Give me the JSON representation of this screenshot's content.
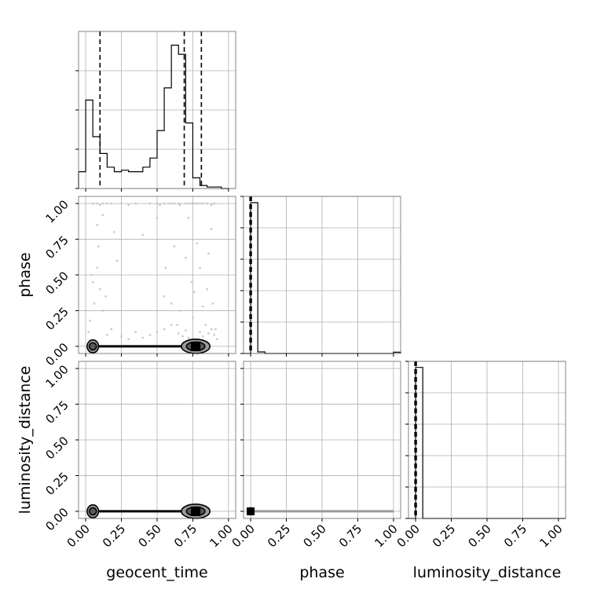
{
  "chart_data": {
    "type": "corner",
    "parameters": [
      "geocent_time",
      "phase",
      "luminosity_distance"
    ],
    "tick_labels": [
      "0.00",
      "0.25",
      "0.50",
      "0.75",
      "1.00"
    ],
    "ticks": [
      0,
      0.25,
      0.5,
      0.75,
      1.0
    ],
    "axis_range": [
      -0.05,
      1.05
    ],
    "grid": true,
    "histograms": [
      {
        "parameter": "geocent_time",
        "bin_edges": [
          -0.05,
          0.0,
          0.05,
          0.1,
          0.15,
          0.2,
          0.25,
          0.3,
          0.35,
          0.4,
          0.45,
          0.5,
          0.55,
          0.6,
          0.65,
          0.7,
          0.75,
          0.8,
          0.85,
          0.9,
          0.95,
          1.0
        ],
        "counts": [
          0.11,
          0.58,
          0.34,
          0.23,
          0.14,
          0.11,
          0.12,
          0.11,
          0.11,
          0.14,
          0.2,
          0.38,
          0.66,
          0.94,
          0.88,
          0.43,
          0.07,
          0.02,
          0.01,
          0.01,
          0.0
        ],
        "ymax": 1.03,
        "quantiles": [
          0.1,
          0.69,
          0.81
        ]
      },
      {
        "parameter": "phase",
        "bin_edges": [
          -0.05,
          0.0,
          0.05,
          0.1,
          0.15,
          0.2,
          0.25,
          0.3,
          0.35,
          0.4,
          0.45,
          0.5,
          0.55,
          0.6,
          0.65,
          0.7,
          0.75,
          0.8,
          0.85,
          0.9,
          0.95,
          1.0,
          1.05
        ],
        "counts": [
          0,
          0.96,
          0.01,
          0,
          0,
          0,
          0,
          0,
          0,
          0,
          0,
          0,
          0,
          0,
          0,
          0,
          0,
          0,
          0,
          0,
          0,
          0.008
        ],
        "ymax": 1.0,
        "quantiles": [
          -0.005,
          0.0,
          0.005
        ]
      },
      {
        "parameter": "luminosity_distance",
        "bin_edges": [
          -0.05,
          0.0,
          0.05,
          0.1,
          0.15,
          0.2,
          0.25,
          0.3,
          0.35,
          0.4,
          0.45,
          0.5,
          0.55,
          0.6,
          0.65,
          0.7,
          0.75,
          0.8,
          0.85,
          0.9,
          0.95,
          1.0,
          1.05
        ],
        "counts": [
          0,
          1.0,
          0,
          0,
          0,
          0,
          0,
          0,
          0,
          0,
          0,
          0,
          0,
          0,
          0,
          0,
          0,
          0,
          0,
          0,
          0,
          0
        ],
        "ymax": 1.04,
        "quantiles": [
          -0.005,
          0.0,
          0.005
        ]
      }
    ],
    "pair_panels": [
      {
        "x": "geocent_time",
        "y": "phase",
        "scatter_points": [
          [
            0.05,
            1.0
          ],
          [
            0.08,
            1.0
          ],
          [
            0.1,
            0.99
          ],
          [
            0.12,
            1.0
          ],
          [
            0.15,
            1.0
          ],
          [
            0.18,
            1.0
          ],
          [
            0.25,
            1.0
          ],
          [
            0.3,
            0.99
          ],
          [
            0.35,
            1.0
          ],
          [
            0.45,
            1.0
          ],
          [
            0.5,
            1.0
          ],
          [
            0.52,
            0.99
          ],
          [
            0.55,
            1.0
          ],
          [
            0.58,
            1.0
          ],
          [
            0.6,
            1.0
          ],
          [
            0.62,
            1.0
          ],
          [
            0.65,
            1.0
          ],
          [
            0.66,
            0.99
          ],
          [
            0.7,
            1.0
          ],
          [
            0.72,
            1.0
          ],
          [
            0.74,
            1.0
          ],
          [
            0.76,
            1.0
          ],
          [
            0.78,
            1.0
          ],
          [
            0.8,
            1.0
          ],
          [
            0.82,
            1.0
          ],
          [
            0.85,
            1.0
          ],
          [
            0.88,
            0.99
          ],
          [
            0.9,
            1.0
          ],
          [
            0.08,
            0.85
          ],
          [
            0.09,
            0.7
          ],
          [
            0.12,
            0.92
          ],
          [
            0.2,
            0.8
          ],
          [
            0.22,
            0.6
          ],
          [
            0.4,
            0.78
          ],
          [
            0.5,
            0.9
          ],
          [
            0.55,
            0.35
          ],
          [
            0.56,
            0.55
          ],
          [
            0.6,
            0.3
          ],
          [
            0.62,
            0.7
          ],
          [
            0.64,
            0.15
          ],
          [
            0.66,
            0.25
          ],
          [
            0.7,
            0.62
          ],
          [
            0.72,
            0.9
          ],
          [
            0.74,
            0.45
          ],
          [
            0.75,
            0.2
          ],
          [
            0.76,
            0.38
          ],
          [
            0.78,
            0.72
          ],
          [
            0.8,
            0.55
          ],
          [
            0.82,
            0.28
          ],
          [
            0.84,
            0.15
          ],
          [
            0.85,
            0.4
          ],
          [
            0.86,
            0.65
          ],
          [
            0.88,
            0.82
          ],
          [
            0.89,
            0.3
          ],
          [
            0.9,
            0.08
          ],
          [
            0.91,
            0.12
          ],
          [
            0.04,
            0.5
          ],
          [
            0.05,
            0.45
          ],
          [
            0.06,
            0.3
          ],
          [
            0.08,
            0.55
          ],
          [
            0.1,
            0.4
          ],
          [
            0.12,
            0.25
          ],
          [
            0.15,
            0.08
          ],
          [
            0.18,
            0.12
          ],
          [
            0.25,
            0.07
          ],
          [
            0.3,
            0.05
          ],
          [
            0.35,
            0.1
          ],
          [
            0.4,
            0.06
          ],
          [
            0.45,
            0.08
          ],
          [
            0.5,
            0.1
          ],
          [
            0.55,
            0.12
          ],
          [
            0.6,
            0.15
          ],
          [
            0.65,
            0.09
          ],
          [
            0.68,
            0.07
          ],
          [
            0.7,
            0.11
          ],
          [
            0.72,
            0.06
          ],
          [
            0.8,
            0.1
          ],
          [
            0.82,
            0.07
          ],
          [
            0.86,
            0.09
          ],
          [
            0.88,
            0.12
          ],
          [
            0.92,
            0.05
          ],
          [
            0.03,
            0.18
          ],
          [
            0.02,
            0.1
          ],
          [
            0.14,
            0.35
          ]
        ],
        "density_band": {
          "x_from": 0.05,
          "x_to": 0.85,
          "y": 0.0
        },
        "contours": [
          {
            "cx": 0.05,
            "cy": 0.0,
            "rx": 0.04,
            "ry": 0.045
          },
          {
            "cx": 0.05,
            "cy": 0.0,
            "rx": 0.025,
            "ry": 0.025
          },
          {
            "cx": 0.77,
            "cy": 0.0,
            "rx": 0.1,
            "ry": 0.05
          },
          {
            "cx": 0.77,
            "cy": 0.0,
            "rx": 0.065,
            "ry": 0.03
          },
          {
            "cx": 0.77,
            "cy": 0.0,
            "rx": 0.03,
            "ry": 0.018
          }
        ]
      },
      {
        "x": "geocent_time",
        "y": "luminosity_distance",
        "scatter_points": [],
        "density_band": {
          "x_from": 0.05,
          "x_to": 0.85,
          "y": 0.0
        },
        "contours": [
          {
            "cx": 0.05,
            "cy": 0.0,
            "rx": 0.04,
            "ry": 0.045
          },
          {
            "cx": 0.05,
            "cy": 0.0,
            "rx": 0.025,
            "ry": 0.025
          },
          {
            "cx": 0.77,
            "cy": 0.0,
            "rx": 0.1,
            "ry": 0.05
          },
          {
            "cx": 0.77,
            "cy": 0.0,
            "rx": 0.065,
            "ry": 0.03
          },
          {
            "cx": 0.77,
            "cy": 0.0,
            "rx": 0.03,
            "ry": 0.018
          }
        ]
      },
      {
        "x": "phase",
        "y": "luminosity_distance",
        "scatter_points": [
          [
            0.05,
            0.0
          ],
          [
            0.08,
            0.0
          ],
          [
            0.12,
            0.0
          ],
          [
            0.18,
            0.0
          ],
          [
            0.22,
            0.0
          ],
          [
            0.28,
            0.0
          ],
          [
            0.35,
            0.0
          ],
          [
            0.42,
            0.0
          ],
          [
            0.5,
            0.0
          ],
          [
            0.58,
            0.0
          ],
          [
            0.66,
            0.0
          ],
          [
            0.75,
            0.0
          ],
          [
            0.85,
            0.0
          ],
          [
            0.95,
            0.0
          ],
          [
            1.0,
            0.0
          ]
        ],
        "density_band": {
          "x_from": 0.0,
          "x_to": 1.0,
          "y": 0.0
        },
        "contours": [
          {
            "cx": 0.0,
            "cy": 0.0,
            "rx": 0.02,
            "ry": 0.025
          }
        ]
      }
    ]
  }
}
